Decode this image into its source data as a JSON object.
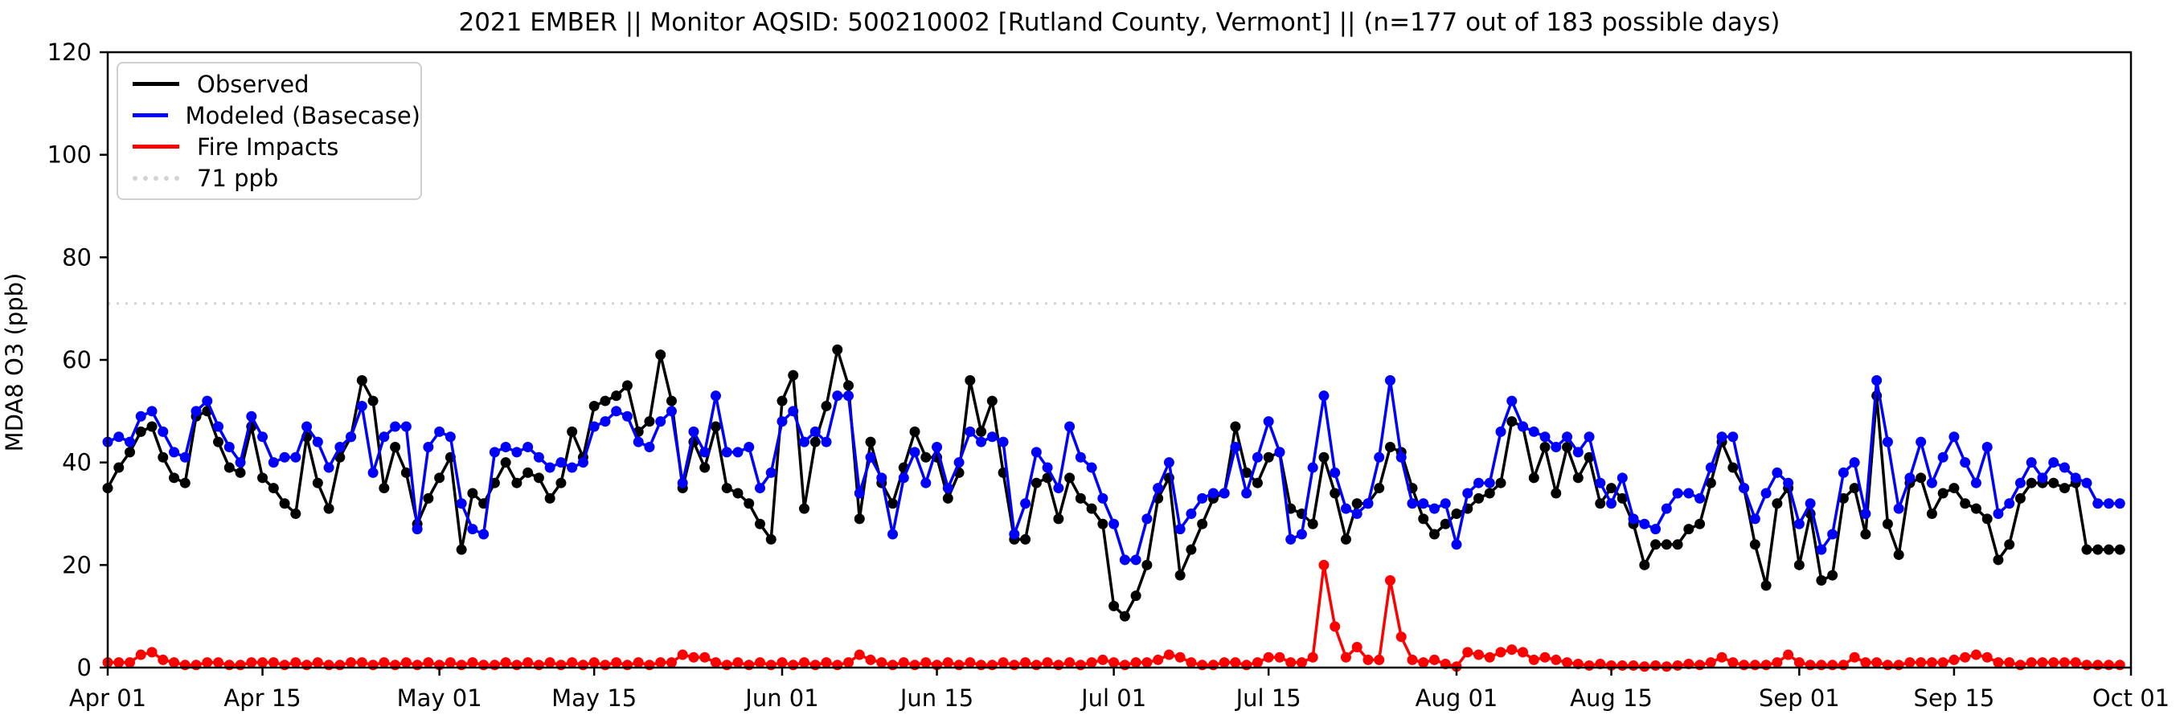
{
  "window": {
    "title": "2021 EMBER || Monitor AQSID: 500210002 [Rutland County, Vermont] || (n=177 out of 183 possible days)"
  },
  "chart_data": {
    "type": "line",
    "title": "2021 EMBER || Monitor AQSID: 500210002 [Rutland County, Vermont] || (n=177 out of 183 possible days)",
    "xlabel": "",
    "ylabel": "MDA8 O3 (ppb)",
    "ylim": [
      0,
      120
    ],
    "yticks": [
      0,
      20,
      40,
      60,
      80,
      100,
      120
    ],
    "x_unit": "days since Apr 01 (2021)",
    "x_total_days": 183,
    "xtick_days": [
      0,
      14,
      30,
      44,
      61,
      75,
      91,
      105,
      122,
      136,
      153,
      167,
      183
    ],
    "xtick_labels": [
      "Apr 01",
      "Apr 15",
      "May 01",
      "May 15",
      "Jun 01",
      "Jun 15",
      "Jul 01",
      "Jul 15",
      "Aug 01",
      "Aug 15",
      "Sep 01",
      "Sep 15",
      "Oct 01"
    ],
    "grid": false,
    "legend_position": "upper-left",
    "threshold": {
      "value": 71,
      "label": "71 ppb",
      "color": "#d3d3d3",
      "style": "dotted"
    },
    "series": [
      {
        "name": "Observed",
        "color": "#000000",
        "style": "solid",
        "marker": "circle",
        "values": [
          35,
          39,
          42,
          46,
          47,
          41,
          37,
          36,
          49,
          50,
          44,
          39,
          38,
          47,
          37,
          35,
          32,
          30,
          45,
          36,
          31,
          41,
          45,
          56,
          52,
          35,
          43,
          38,
          28,
          33,
          37,
          41,
          23,
          34,
          32,
          36,
          40,
          36,
          38,
          37,
          33,
          36,
          46,
          41,
          51,
          52,
          53,
          55,
          46,
          48,
          61,
          52,
          35,
          44,
          39,
          47,
          35,
          34,
          32,
          28,
          25,
          52,
          57,
          31,
          44,
          51,
          62,
          55,
          29,
          44,
          36,
          32,
          39,
          46,
          41,
          41,
          33,
          38,
          56,
          46,
          52,
          38,
          25,
          25,
          36,
          37,
          29,
          37,
          33,
          31,
          28,
          12,
          10,
          14,
          20,
          33,
          37,
          18,
          23,
          28,
          33,
          34,
          47,
          38,
          36,
          41,
          42,
          31,
          30,
          28,
          41,
          34,
          25,
          32,
          32,
          35,
          43,
          42,
          35,
          29,
          26,
          28,
          30,
          31,
          33,
          34,
          36,
          48,
          47,
          37,
          43,
          34,
          43,
          37,
          41,
          32,
          35,
          33,
          28,
          20,
          24,
          24,
          24,
          27,
          28,
          36,
          44,
          39,
          35,
          24,
          16,
          32,
          35,
          20,
          30,
          17,
          18,
          33,
          35,
          26,
          53,
          28,
          22,
          36,
          37,
          30,
          34,
          35,
          32,
          31,
          29,
          21,
          24,
          33,
          36,
          36,
          36,
          35,
          36,
          23,
          23,
          23,
          23
        ]
      },
      {
        "name": "Modeled (Basecase)",
        "color": "#0000ff",
        "style": "solid",
        "marker": "circle",
        "values": [
          44,
          45,
          44,
          49,
          50,
          46,
          42,
          41,
          50,
          52,
          47,
          43,
          40,
          49,
          45,
          40,
          41,
          41,
          47,
          44,
          39,
          43,
          45,
          51,
          38,
          45,
          47,
          47,
          27,
          43,
          46,
          45,
          32,
          27,
          26,
          42,
          43,
          42,
          43,
          41,
          39,
          40,
          39,
          40,
          47,
          48,
          50,
          49,
          44,
          43,
          48,
          50,
          36,
          46,
          42,
          53,
          42,
          42,
          43,
          35,
          38,
          48,
          50,
          44,
          46,
          44,
          53,
          53,
          34,
          41,
          37,
          26,
          37,
          42,
          36,
          43,
          35,
          40,
          46,
          44,
          45,
          44,
          26,
          32,
          42,
          39,
          35,
          47,
          41,
          39,
          33,
          28,
          21,
          21,
          29,
          35,
          40,
          27,
          30,
          33,
          34,
          34,
          43,
          34,
          41,
          48,
          42,
          25,
          26,
          39,
          53,
          38,
          31,
          30,
          32,
          41,
          56,
          41,
          32,
          32,
          31,
          32,
          24,
          34,
          36,
          36,
          46,
          52,
          47,
          46,
          45,
          43,
          45,
          42,
          45,
          36,
          32,
          37,
          29,
          28,
          27,
          31,
          34,
          34,
          33,
          39,
          45,
          45,
          35,
          29,
          34,
          38,
          36,
          28,
          32,
          23,
          26,
          38,
          40,
          30,
          56,
          44,
          31,
          37,
          44,
          36,
          41,
          45,
          40,
          36,
          43,
          30,
          32,
          36,
          40,
          37,
          40,
          39,
          37,
          36,
          32,
          32,
          32
        ]
      },
      {
        "name": "Fire Impacts",
        "color": "#ff0000",
        "style": "solid",
        "marker": "circle",
        "values": [
          1,
          1,
          1,
          2.5,
          3,
          1.5,
          1,
          0.5,
          0.5,
          1,
          1,
          0.5,
          0.5,
          1,
          1,
          1,
          0.5,
          1,
          0.5,
          1,
          0.5,
          0.5,
          1,
          1,
          0.5,
          1,
          0.5,
          1,
          0.5,
          1,
          0.5,
          1,
          0.5,
          1,
          0.5,
          0.5,
          1,
          0.5,
          1,
          0.5,
          1,
          0.5,
          1,
          0.5,
          1,
          0.5,
          1,
          0.5,
          1,
          0.5,
          1,
          1,
          2.5,
          2,
          2,
          1,
          0.5,
          1,
          0.5,
          1,
          0.5,
          1,
          0.5,
          1,
          0.5,
          1,
          0.5,
          1,
          2.5,
          1.5,
          1,
          0.5,
          1,
          0.5,
          1,
          0.5,
          1,
          0.5,
          1,
          0.5,
          0.5,
          1,
          0.5,
          1,
          0.5,
          1,
          0.5,
          1,
          0.5,
          1,
          1.5,
          1,
          0.5,
          1,
          1,
          1.5,
          2.5,
          2,
          1,
          0.5,
          0.5,
          1,
          1,
          0.5,
          1,
          2,
          2,
          1,
          1,
          2,
          20,
          8,
          2,
          4,
          1.5,
          1.5,
          17,
          6,
          1.5,
          1,
          1.5,
          0.7,
          0.2,
          3,
          2.5,
          2,
          3,
          3.5,
          3,
          1.5,
          2,
          1.5,
          1,
          0.7,
          0.4,
          0.7,
          0.4,
          0.4,
          0.4,
          0.2,
          0.4,
          0.2,
          0.4,
          0.7,
          0.5,
          1,
          2,
          1,
          0.5,
          0.5,
          0.5,
          1,
          2.5,
          1,
          0.5,
          0.5,
          0.5,
          0.5,
          2,
          1,
          1,
          0.5,
          0.5,
          1,
          1,
          1,
          1,
          1.5,
          2,
          2.5,
          2,
          1,
          1,
          0.5,
          1,
          1,
          1,
          1,
          1,
          0.5,
          0.5,
          0.5,
          0.5
        ]
      }
    ],
    "legend_entries": [
      "Observed",
      "Modeled (Basecase)",
      "Fire Impacts",
      "71 ppb"
    ]
  }
}
